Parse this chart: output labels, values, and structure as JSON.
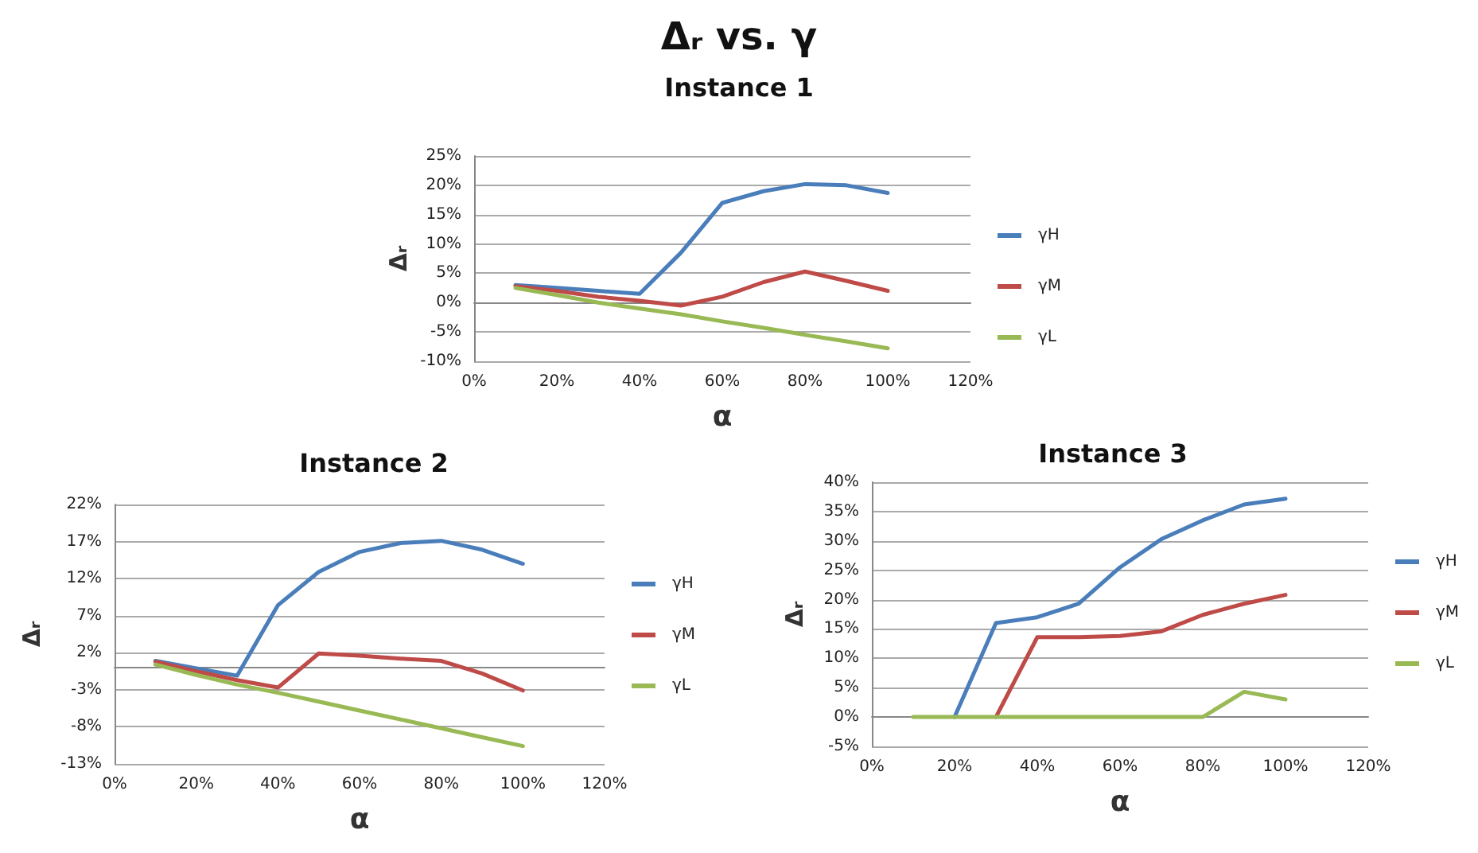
{
  "chart_data": [
    {
      "type": "line",
      "title": "Δᵣ vs. γ",
      "subtitle": "Instance 1",
      "xlabel": "α",
      "ylabel": "Δᵣ",
      "x": [
        10,
        20,
        30,
        40,
        50,
        60,
        70,
        80,
        90,
        100
      ],
      "series": [
        {
          "name": "γH",
          "color": "#4a7ebb",
          "values": [
            3,
            2.5,
            2,
            1.5,
            8.5,
            17,
            19,
            20.2,
            20,
            18.7
          ]
        },
        {
          "name": "γM",
          "color": "#be4b48",
          "values": [
            2.8,
            2,
            1,
            0.3,
            -0.5,
            1,
            3.5,
            5.3,
            3.7,
            2
          ]
        },
        {
          "name": "γL",
          "color": "#98b954",
          "values": [
            2.5,
            1.3,
            0,
            -1,
            -2,
            -3.2,
            -4.3,
            -5.5,
            -6.6,
            -7.8
          ]
        }
      ],
      "xlim": [
        0,
        120
      ],
      "xticks": [
        {
          "value": 0,
          "label": "0%"
        },
        {
          "value": 20,
          "label": "20%"
        },
        {
          "value": 40,
          "label": "40%"
        },
        {
          "value": 60,
          "label": "60%"
        },
        {
          "value": 80,
          "label": "80%"
        },
        {
          "value": 100,
          "label": "100%"
        },
        {
          "value": 120,
          "label": "120%"
        }
      ],
      "ylim": [
        -10,
        25
      ],
      "yticks": [
        {
          "value": -10,
          "label": "-10%"
        },
        {
          "value": -5,
          "label": "-5%"
        },
        {
          "value": 0,
          "label": "0%"
        },
        {
          "value": 5,
          "label": "5%"
        },
        {
          "value": 10,
          "label": "10%"
        },
        {
          "value": 15,
          "label": "15%"
        },
        {
          "value": 20,
          "label": "20%"
        },
        {
          "value": 25,
          "label": "25%"
        }
      ],
      "grid": "y",
      "legend": "right",
      "marker": "none",
      "line_style": "solid"
    },
    {
      "type": "line",
      "title": "Instance 2",
      "xlabel": "α",
      "ylabel": "Δᵣ",
      "x": [
        10,
        20,
        30,
        40,
        50,
        60,
        70,
        80,
        90,
        100
      ],
      "series": [
        {
          "name": "γH",
          "color": "#4a7ebb",
          "values": [
            0.9,
            -0.1,
            -1.1,
            8.4,
            12.9,
            15.6,
            16.8,
            17.1,
            15.9,
            14
          ]
        },
        {
          "name": "γM",
          "color": "#be4b48",
          "values": [
            0.8,
            -0.5,
            -1.7,
            -2.7,
            1.9,
            1.6,
            1.2,
            0.9,
            -0.8,
            -3.1
          ]
        },
        {
          "name": "γL",
          "color": "#98b954",
          "values": [
            0.4,
            -1,
            -2.3,
            -3.4,
            -4.6,
            -5.8,
            -7,
            -8.2,
            -9.4,
            -10.6
          ]
        }
      ],
      "xlim": [
        0,
        120
      ],
      "xticks": [
        {
          "value": 0,
          "label": "0%"
        },
        {
          "value": 20,
          "label": "20%"
        },
        {
          "value": 40,
          "label": "40%"
        },
        {
          "value": 60,
          "label": "60%"
        },
        {
          "value": 80,
          "label": "80%"
        },
        {
          "value": 100,
          "label": "100%"
        },
        {
          "value": 120,
          "label": "120%"
        }
      ],
      "ylim": [
        -13,
        22
      ],
      "yticks": [
        {
          "value": -13,
          "label": "-13%"
        },
        {
          "value": -8,
          "label": "-8%"
        },
        {
          "value": -3,
          "label": "-3%"
        },
        {
          "value": 2,
          "label": "2%"
        },
        {
          "value": 7,
          "label": "7%"
        },
        {
          "value": 12,
          "label": "12%"
        },
        {
          "value": 17,
          "label": "17%"
        },
        {
          "value": 22,
          "label": "22%"
        }
      ],
      "grid": "y",
      "legend": "right",
      "marker": "none",
      "line_style": "solid"
    },
    {
      "type": "line",
      "title": "Instance 3",
      "xlabel": "α",
      "ylabel": "Δᵣ",
      "x": [
        10,
        20,
        30,
        40,
        50,
        60,
        70,
        80,
        90,
        100
      ],
      "series": [
        {
          "name": "γH",
          "color": "#4a7ebb",
          "values": [
            null,
            0,
            16,
            17,
            19.3,
            25.5,
            30.3,
            33.5,
            36.2,
            37.2
          ]
        },
        {
          "name": "γM",
          "color": "#be4b48",
          "values": [
            null,
            null,
            0,
            13.6,
            13.6,
            13.8,
            14.6,
            17.4,
            19.3,
            20.8
          ]
        },
        {
          "name": "γL",
          "color": "#98b954",
          "values": [
            0,
            0,
            0,
            0,
            0,
            0,
            0,
            0,
            4.3,
            3
          ]
        }
      ],
      "xlim": [
        0,
        120
      ],
      "xticks": [
        {
          "value": 0,
          "label": "0%"
        },
        {
          "value": 20,
          "label": "20%"
        },
        {
          "value": 40,
          "label": "40%"
        },
        {
          "value": 60,
          "label": "60%"
        },
        {
          "value": 80,
          "label": "80%"
        },
        {
          "value": 100,
          "label": "100%"
        },
        {
          "value": 120,
          "label": "120%"
        }
      ],
      "ylim": [
        -5,
        40
      ],
      "yticks": [
        {
          "value": -5,
          "label": "-5%"
        },
        {
          "value": 0,
          "label": "0%"
        },
        {
          "value": 5,
          "label": "5%"
        },
        {
          "value": 10,
          "label": "10%"
        },
        {
          "value": 15,
          "label": "15%"
        },
        {
          "value": 20,
          "label": "20%"
        },
        {
          "value": 25,
          "label": "25%"
        },
        {
          "value": 30,
          "label": "30%"
        },
        {
          "value": 35,
          "label": "35%"
        },
        {
          "value": 40,
          "label": "40%"
        }
      ],
      "grid": "y",
      "legend": "right",
      "marker": "none",
      "line_style": "solid"
    }
  ]
}
